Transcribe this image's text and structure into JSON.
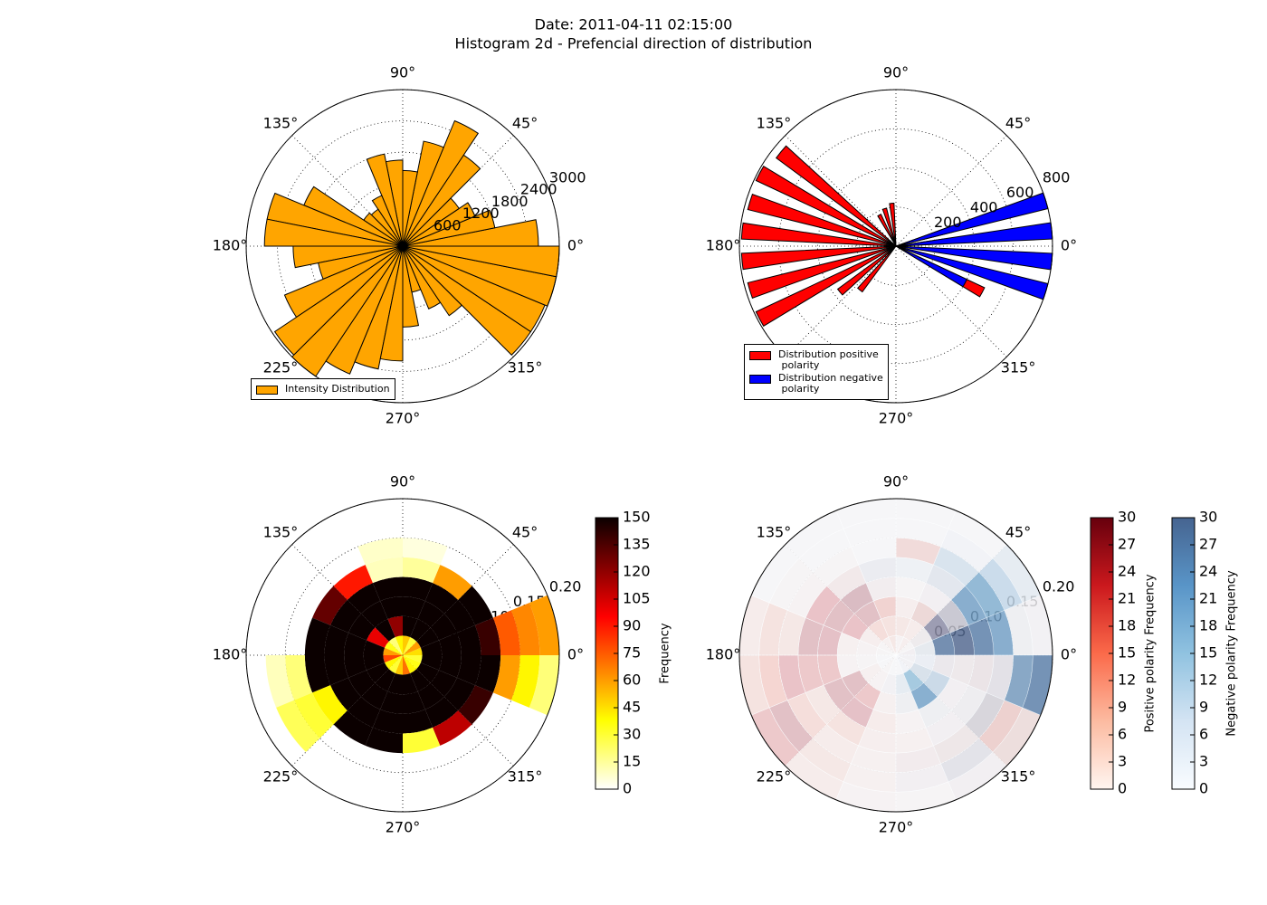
{
  "title": "Date: 2011-04-11 02:15:00",
  "subtitle": "Histogram 2d - Prefencial direction of distribution",
  "chart_data": [
    {
      "type": "polar-bar",
      "rlim": [
        0,
        3000
      ],
      "rticks": [
        600,
        1200,
        1800,
        2400,
        3000
      ],
      "bar_width": 11.25,
      "legend": "lower left",
      "thetaticks": [
        {
          "value": 0,
          "label": "0°"
        },
        {
          "value": 45,
          "label": "45°"
        },
        {
          "value": 90,
          "label": "90°"
        },
        {
          "value": 135,
          "label": "135°"
        },
        {
          "value": 180,
          "label": "180°"
        },
        {
          "value": 225,
          "label": "225°"
        },
        {
          "value": 270,
          "label": "270°"
        },
        {
          "value": 315,
          "label": "315°"
        }
      ],
      "x": [
        5.625,
        16.875,
        28.125,
        39.375,
        50.625,
        61.875,
        73.125,
        84.375,
        95.625,
        106.875,
        118.125,
        129.375,
        140.625,
        151.875,
        163.125,
        174.375,
        185.625,
        196.875,
        208.125,
        219.375,
        230.625,
        241.875,
        253.125,
        264.375,
        275.625,
        286.875,
        298.125,
        309.375,
        320.625,
        331.875,
        343.125,
        354.375
      ],
      "series": [
        {
          "name": "Intensity Distribution",
          "color": "#ffa500",
          "values": [
            2600,
            1800,
            1500,
            1300,
            2100,
            2600,
            2050,
            1450,
            1650,
            1800,
            1050,
            850,
            900,
            2050,
            2650,
            2650,
            2100,
            1650,
            2450,
            2950,
            3000,
            2650,
            2400,
            2200,
            1550,
            900,
            1300,
            1600,
            2950,
            2950,
            3000,
            3000
          ]
        }
      ]
    },
    {
      "type": "polar-bar",
      "rlim": [
        0,
        800
      ],
      "rticks": [
        200,
        400,
        600,
        800
      ],
      "bar_width": 6,
      "legend": "lower left",
      "thetaticks": [
        {
          "value": 0,
          "label": "0°"
        },
        {
          "value": 45,
          "label": "45°"
        },
        {
          "value": 90,
          "label": "90°"
        },
        {
          "value": 135,
          "label": "135°"
        },
        {
          "value": 180,
          "label": "180°"
        },
        {
          "value": 225,
          "label": "225°"
        },
        {
          "value": 270,
          "label": "270°"
        },
        {
          "value": 315,
          "label": "315°"
        }
      ],
      "x": [
        5.625,
        16.875,
        28.125,
        39.375,
        50.625,
        61.875,
        73.125,
        84.375,
        95.625,
        106.875,
        118.125,
        129.375,
        140.625,
        151.875,
        163.125,
        174.375,
        185.625,
        196.875,
        208.125,
        219.375,
        230.625,
        241.875,
        253.125,
        264.375,
        275.625,
        286.875,
        298.125,
        309.375,
        320.625,
        331.875,
        343.125,
        354.375
      ],
      "series": [
        {
          "name": "Distribution positive\n polarity",
          "color": "#ff0000",
          "values": [
            250,
            300,
            0,
            0,
            0,
            0,
            0,
            0,
            220,
            200,
            180,
            0,
            760,
            790,
            780,
            790,
            790,
            780,
            790,
            370,
            290,
            0,
            0,
            0,
            0,
            0,
            0,
            0,
            0,
            500,
            0,
            0
          ]
        },
        {
          "name": "Distribution negative\n polarity",
          "color": "#0000ff",
          "values": [
            800,
            800,
            0,
            0,
            0,
            0,
            0,
            0,
            0,
            0,
            0,
            0,
            0,
            0,
            0,
            0,
            0,
            0,
            0,
            0,
            0,
            0,
            0,
            0,
            0,
            0,
            0,
            0,
            0,
            400,
            800,
            800
          ]
        }
      ]
    },
    {
      "type": "polar-hist2d",
      "rlim": [
        0,
        0.2
      ],
      "rticks": [
        0.05,
        {
          "value": 0.1,
          "label": "0.10"
        },
        0.15,
        {
          "value": 0.2,
          "label": "0.20"
        }
      ],
      "thetaticks": [
        {
          "value": 0,
          "label": "0°"
        },
        {
          "value": 45,
          "label": "45°"
        },
        {
          "value": 90,
          "label": "90°"
        },
        {
          "value": 135,
          "label": "135°"
        },
        {
          "value": 180,
          "label": "180°"
        },
        {
          "value": 225,
          "label": "225°"
        },
        {
          "value": 270,
          "label": "270°"
        },
        {
          "value": 315,
          "label": "315°"
        }
      ],
      "theta_bins": [
        0,
        22.5,
        45,
        67.5,
        90,
        112.5,
        135,
        157.5,
        180,
        202.5,
        225,
        247.5,
        270,
        292.5,
        315,
        337.5,
        360
      ],
      "r_bins": [
        0,
        0.025,
        0.05,
        0.075,
        0.1,
        0.125,
        0.15,
        0.175,
        0.2
      ],
      "series": [
        {
          "name": "Frequency",
          "colormap": "hot_r",
          "clim": [
            0,
            150
          ],
          "cticks": [
            0,
            15,
            30,
            45,
            60,
            75,
            90,
            105,
            120,
            135,
            150
          ],
          "values": [
            [
              45,
              60,
              30,
              50,
              40,
              20,
              35,
              60,
              80,
              40,
              30,
              50,
              70,
              40,
              35,
              30
            ],
            [
              150,
              150,
              150,
              150,
              120,
              150,
              100,
              150,
              150,
              150,
              150,
              150,
              150,
              150,
              150,
              150
            ],
            [
              150,
              150,
              150,
              150,
              150,
              150,
              150,
              150,
              150,
              150,
              150,
              150,
              150,
              150,
              150,
              150
            ],
            [
              150,
              150,
              150,
              150,
              150,
              150,
              150,
              150,
              150,
              150,
              150,
              150,
              150,
              150,
              150,
              150
            ],
            [
              140,
              150,
              60,
              15,
              10,
              90,
              130,
              150,
              150,
              40,
              150,
              150,
              30,
              110,
              140,
              150
            ],
            [
              75,
              null,
              null,
              5,
              8,
              null,
              null,
              null,
              20,
              30,
              null,
              null,
              null,
              null,
              null,
              60
            ],
            [
              65,
              null,
              null,
              null,
              null,
              null,
              null,
              null,
              10,
              25,
              null,
              null,
              null,
              null,
              null,
              40
            ],
            [
              60,
              null,
              null,
              null,
              null,
              null,
              null,
              null,
              null,
              null,
              null,
              null,
              null,
              null,
              null,
              20
            ]
          ]
        }
      ]
    },
    {
      "type": "polar-hist2d",
      "rlim": [
        0,
        0.2
      ],
      "rticks": [
        0.05,
        {
          "value": 0.1,
          "label": "0.10"
        },
        0.15,
        {
          "value": 0.2,
          "label": "0.20"
        }
      ],
      "thetaticks": [
        {
          "value": 0,
          "label": "0°"
        },
        {
          "value": 45,
          "label": "45°"
        },
        {
          "value": 90,
          "label": "90°"
        },
        {
          "value": 135,
          "label": "135°"
        },
        {
          "value": 180,
          "label": "180°"
        },
        {
          "value": 225,
          "label": "225°"
        },
        {
          "value": 270,
          "label": "270°"
        },
        {
          "value": 315,
          "label": "315°"
        }
      ],
      "theta_bins": [
        0,
        22.5,
        45,
        67.5,
        90,
        112.5,
        135,
        157.5,
        180,
        202.5,
        225,
        247.5,
        270,
        292.5,
        315,
        337.5,
        360
      ],
      "r_bins": [
        0,
        0.025,
        0.05,
        0.075,
        0.1,
        0.125,
        0.15,
        0.175,
        0.2
      ],
      "series": [
        {
          "name": "Positive polarity Frequency",
          "colormap": "Reds",
          "clim": [
            0,
            30
          ],
          "cticks": [
            0,
            3,
            6,
            9,
            12,
            15,
            18,
            21,
            24,
            27,
            30
          ],
          "values": [
            [
              3,
              2,
              5,
              3,
              8,
              4,
              2,
              2,
              1,
              1,
              2,
              1,
              1,
              1,
              2,
              2
            ],
            [
              2,
              4,
              6,
              8,
              10,
              12,
              5,
              3,
              2,
              4,
              3,
              2,
              1,
              1,
              2,
              1
            ],
            [
              6,
              20,
              12,
              5,
              15,
              25,
              22,
              4,
              3,
              25,
              20,
              4,
              2,
              2,
              2,
              4
            ],
            [
              5,
              10,
              3,
              2,
              4,
              25,
              25,
              24,
              20,
              25,
              24,
              6,
              3,
              2,
              3,
              5
            ],
            [
              4,
              3,
              2,
              1,
              2,
              6,
              22,
              25,
              20,
              8,
              10,
              5,
              4,
              3,
              3,
              6
            ],
            [
              3,
              2,
              1,
              12,
              1,
              2,
              3,
              8,
              22,
              12,
              6,
              4,
              5,
              6,
              8,
              5
            ],
            [
              2,
              1,
              1,
              1,
              1,
              1,
              2,
              10,
              15,
              25,
              8,
              4,
              3,
              4,
              15,
              6
            ],
            [
              2,
              1,
              1,
              1,
              1,
              1,
              1,
              6,
              10,
              20,
              6,
              3,
              2,
              3,
              10,
              4
            ]
          ]
        },
        {
          "name": "Negative polarity Frequency",
          "colormap": "Blues",
          "clim": [
            0,
            30
          ],
          "cticks": [
            0,
            3,
            6,
            9,
            12,
            15,
            18,
            21,
            24,
            27,
            30
          ],
          "values": [
            [
              2,
              1,
              1,
              1,
              1,
              1,
              1,
              1,
              1,
              1,
              1,
              1,
              1,
              2,
              2,
              2
            ],
            [
              5,
              3,
              1,
              1,
              1,
              1,
              1,
              1,
              1,
              1,
              1,
              2,
              5,
              15,
              8,
              4
            ],
            [
              25,
              15,
              3,
              1,
              2,
              1,
              1,
              1,
              1,
              1,
              1,
              1,
              3,
              20,
              10,
              4
            ],
            [
              28,
              10,
              2,
              1,
              2,
              3,
              1,
              1,
              1,
              1,
              1,
              1,
              1,
              3,
              2,
              3
            ],
            [
              25,
              20,
              6,
              3,
              4,
              2,
              1,
              1,
              1,
              1,
              1,
              1,
              1,
              2,
              3,
              4
            ],
            [
              20,
              18,
              8,
              2,
              1,
              1,
              1,
              1,
              1,
              1,
              1,
              1,
              2,
              3,
              8,
              6
            ],
            [
              3,
              10,
              2,
              1,
              1,
              1,
              1,
              1,
              1,
              1,
              1,
              1,
              2,
              6,
              3,
              20
            ],
            [
              2,
              5,
              1,
              1,
              1,
              1,
              1,
              1,
              1,
              1,
              1,
              1,
              1,
              2,
              3,
              25
            ]
          ]
        }
      ]
    }
  ]
}
